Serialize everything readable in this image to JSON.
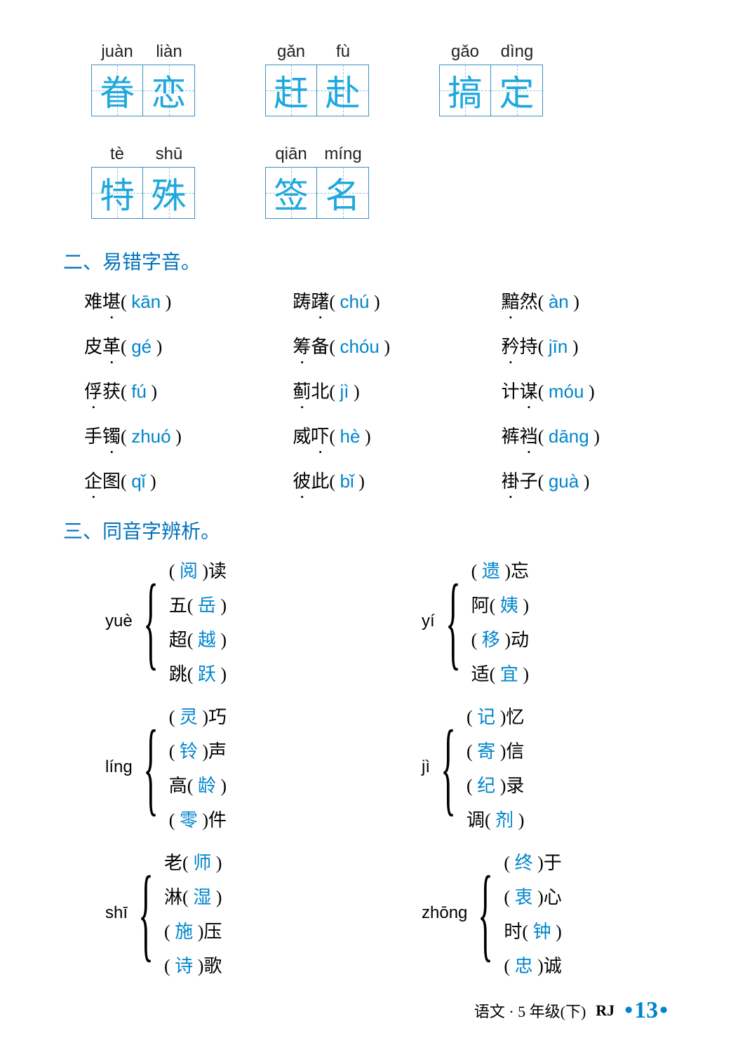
{
  "char_boxes_row1": [
    {
      "pinyin": [
        "juàn",
        "liàn"
      ],
      "chars": [
        "眷",
        "恋"
      ]
    },
    {
      "pinyin": [
        "gǎn",
        "fù"
      ],
      "chars": [
        "赶",
        "赴"
      ]
    },
    {
      "pinyin": [
        "gǎo",
        "dìng"
      ],
      "chars": [
        "搞",
        "定"
      ]
    }
  ],
  "char_boxes_row2": [
    {
      "pinyin": [
        "tè",
        "shū"
      ],
      "chars": [
        "特",
        "殊"
      ]
    },
    {
      "pinyin": [
        "qiān",
        "míng"
      ],
      "chars": [
        "签",
        "名"
      ]
    }
  ],
  "section2_title": "二、易错字音。",
  "pinyin_items": [
    {
      "pre": "难",
      "dot": "堪",
      "ans": "kān"
    },
    {
      "pre": "踌",
      "dot": "躇",
      "ans": "chú"
    },
    {
      "pre": "",
      "dot": "黯",
      "post": "然",
      "ans": "àn"
    },
    {
      "pre": "皮",
      "dot": "革",
      "ans": "gé"
    },
    {
      "pre": "",
      "dot": "筹",
      "post": "备",
      "ans": "chóu"
    },
    {
      "pre": "",
      "dot": "矜",
      "post": "持",
      "ans": "jīn"
    },
    {
      "pre": "",
      "dot": "俘",
      "post": "获",
      "ans": "fú"
    },
    {
      "pre": "",
      "dot": "蓟",
      "post": "北",
      "ans": "jì"
    },
    {
      "pre": "计",
      "dot": "谋",
      "ans": "móu"
    },
    {
      "pre": "手",
      "dot": "镯",
      "ans": "zhuó"
    },
    {
      "pre": "威",
      "dot": "吓",
      "ans": "hè"
    },
    {
      "pre": "裤",
      "dot": "裆",
      "ans": "dāng"
    },
    {
      "pre": "",
      "dot": "企",
      "post": "图",
      "ans": "qǐ"
    },
    {
      "pre": "",
      "dot": "彼",
      "post": "此",
      "ans": "bǐ"
    },
    {
      "pre": "",
      "dot": "褂",
      "post": "子",
      "ans": "guà"
    }
  ],
  "section3_title": "三、同音字辨析。",
  "homo_groups": [
    {
      "label": "yuè",
      "items": [
        {
          "before": "(",
          "ans": "阅",
          "after": ")读"
        },
        {
          "before": "五(",
          "ans": "岳",
          "after": ")"
        },
        {
          "before": "超(",
          "ans": "越",
          "after": ")"
        },
        {
          "before": "跳(",
          "ans": "跃",
          "after": ")"
        }
      ]
    },
    {
      "label": "yí",
      "items": [
        {
          "before": "(",
          "ans": "遗",
          "after": ")忘"
        },
        {
          "before": "阿(",
          "ans": "姨",
          "after": ")"
        },
        {
          "before": "(",
          "ans": "移",
          "after": ")动"
        },
        {
          "before": "适(",
          "ans": "宜",
          "after": ")"
        }
      ]
    },
    {
      "label": "líng",
      "items": [
        {
          "before": "(",
          "ans": "灵",
          "after": ")巧"
        },
        {
          "before": "(",
          "ans": "铃",
          "after": ")声"
        },
        {
          "before": "高(",
          "ans": "龄",
          "after": ")"
        },
        {
          "before": "(",
          "ans": "零",
          "after": ")件"
        }
      ]
    },
    {
      "label": "jì",
      "items": [
        {
          "before": "(",
          "ans": "记",
          "after": ")忆"
        },
        {
          "before": "(",
          "ans": "寄",
          "after": ")信"
        },
        {
          "before": "(",
          "ans": "纪",
          "after": ")录"
        },
        {
          "before": "调(",
          "ans": "剂",
          "after": ")"
        }
      ]
    },
    {
      "label": "shī",
      "items": [
        {
          "before": "老(",
          "ans": "师",
          "after": ")"
        },
        {
          "before": "淋(",
          "ans": "湿",
          "after": ")"
        },
        {
          "before": "(",
          "ans": "施",
          "after": ")压"
        },
        {
          "before": "(",
          "ans": "诗",
          "after": ")歌"
        }
      ]
    },
    {
      "label": "zhōng",
      "items": [
        {
          "before": "(",
          "ans": "终",
          "after": ")于"
        },
        {
          "before": "(",
          "ans": "衷",
          "after": ")心"
        },
        {
          "before": "时(",
          "ans": "钟",
          "after": ")"
        },
        {
          "before": "(",
          "ans": "忠",
          "after": ")诚"
        }
      ]
    }
  ],
  "footer": {
    "text1": "语文 · 5 年级(下)",
    "text2": "RJ",
    "page": "13"
  }
}
